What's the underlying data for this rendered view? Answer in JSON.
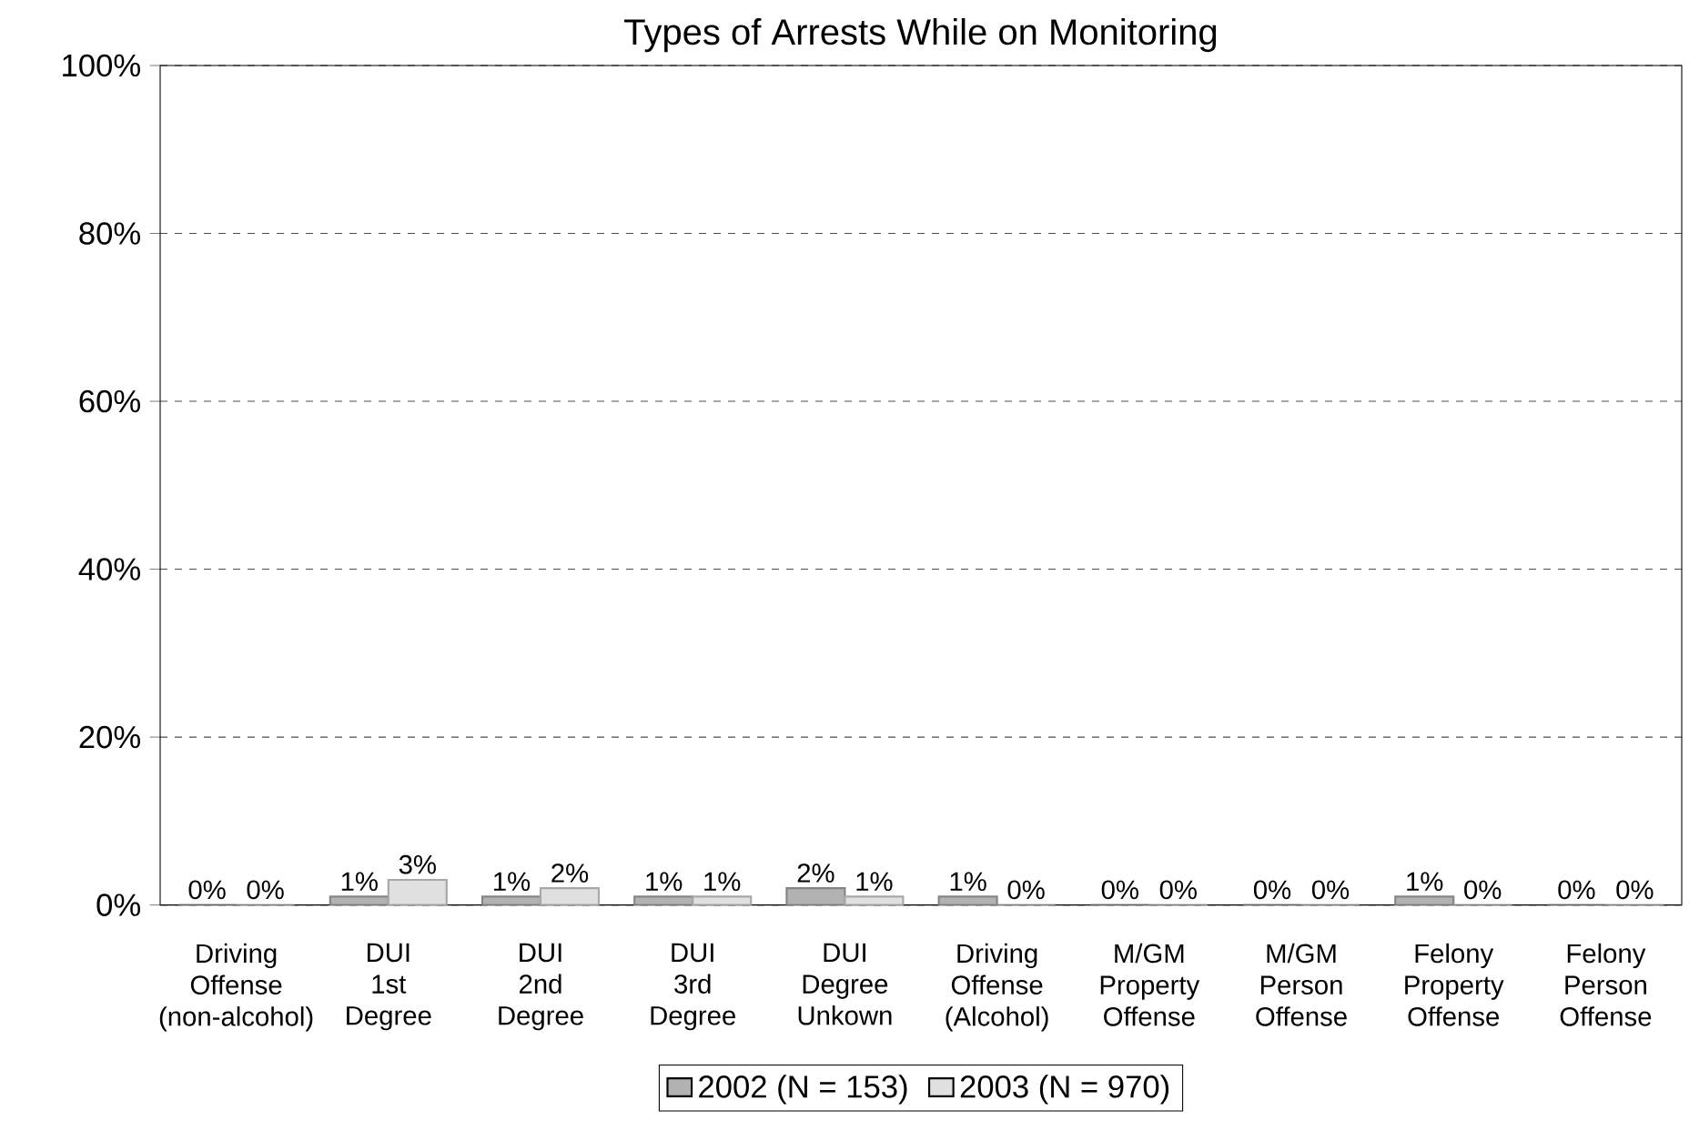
{
  "chart_data": {
    "type": "bar",
    "title": "Types of Arrests While on Monitoring",
    "categories": [
      "Driving Offense (non-alcohol)",
      "DUI 1st Degree",
      "DUI 2nd Degree",
      "DUI 3rd Degree",
      "DUI Degree Unkown",
      "Driving Offense (Alcohol)",
      "M/GM Property Offense",
      "M/GM Person Offense",
      "Felony Property Offense",
      "Felony Person Offense"
    ],
    "series": [
      {
        "name": "2002 (N = 153)",
        "color": "#b2b2b2",
        "values": [
          0,
          1,
          1,
          1,
          2,
          1,
          0,
          0,
          1,
          0
        ],
        "value_labels": [
          "0%",
          "1%",
          "1%",
          "1%",
          "2%",
          "1%",
          "0%",
          "0%",
          "1%",
          "0%"
        ]
      },
      {
        "name": "2003 (N = 970)",
        "color": "#e0e0e0",
        "values": [
          0,
          3,
          2,
          1,
          1,
          0,
          0,
          0,
          0,
          0
        ],
        "value_labels": [
          "0%",
          "3%",
          "2%",
          "1%",
          "1%",
          "0%",
          "0%",
          "0%",
          "0%",
          "0%"
        ]
      }
    ],
    "ylim": [
      0,
      100
    ],
    "yticks": [
      {
        "value": 0,
        "label": "0%"
      },
      {
        "value": 20,
        "label": "20%"
      },
      {
        "value": 40,
        "label": "40%"
      },
      {
        "value": 60,
        "label": "60%"
      },
      {
        "value": 80,
        "label": "80%"
      },
      {
        "value": 100,
        "label": "100%"
      }
    ],
    "grid": "y",
    "legend": "bottom"
  }
}
